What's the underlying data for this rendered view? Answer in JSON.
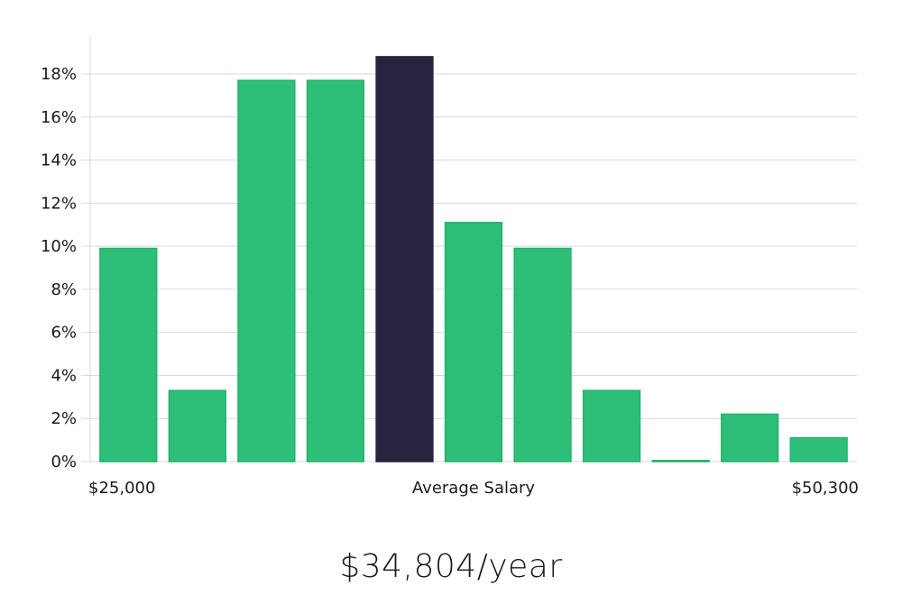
{
  "chart_data": {
    "type": "bar",
    "categories": [
      "$25,000",
      "",
      "",
      "",
      "Average Salary",
      "",
      "",
      "",
      "",
      "",
      "$50,300"
    ],
    "values": [
      9.9,
      3.3,
      17.7,
      17.7,
      18.8,
      11.1,
      9.9,
      3.3,
      0.05,
      2.2,
      1.1
    ],
    "highlight_index": 4,
    "ylim": [
      0,
      18
    ],
    "yticks": [
      {
        "value": 0,
        "label": "0%"
      },
      {
        "value": 2,
        "label": "2%"
      },
      {
        "value": 4,
        "label": "4%"
      },
      {
        "value": 6,
        "label": "6%"
      },
      {
        "value": 8,
        "label": "8%"
      },
      {
        "value": 10,
        "label": "10%"
      },
      {
        "value": 12,
        "label": "12%"
      },
      {
        "value": 14,
        "label": "14%"
      },
      {
        "value": 16,
        "label": "16%"
      },
      {
        "value": 18,
        "label": "18%"
      }
    ],
    "x_labels": {
      "left": "$25,000",
      "center": "Average Salary",
      "right": "$50,300"
    },
    "grid": true,
    "colors": {
      "bar": "#2dbf78",
      "bar_stroke": "#22b26c",
      "highlight": "#28233f",
      "grid": "#d9d9d9",
      "axis": "#cccccc"
    }
  },
  "headline": {
    "salary": "$34,804/year"
  }
}
